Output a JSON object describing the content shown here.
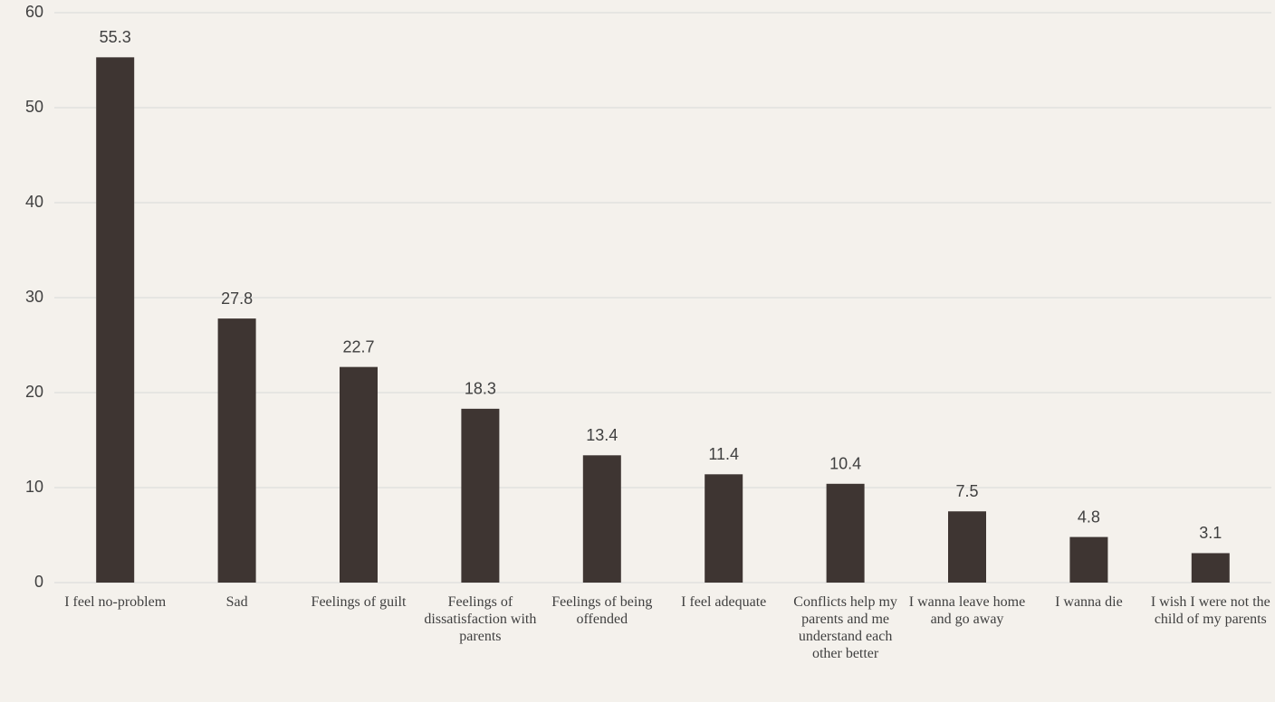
{
  "chart_data": {
    "type": "bar",
    "categories": [
      "I feel no-problem",
      "Sad",
      "Feelings of guilt",
      "Feelings of dissatisfaction with parents",
      "Feelings of being offended",
      "I feel adequate",
      "Conflicts help my parents and me understand each other better",
      "I wanna leave home and go away",
      "I wanna die",
      "I wish I were not the child of my parents"
    ],
    "values": [
      55.3,
      27.8,
      22.7,
      18.3,
      13.4,
      11.4,
      10.4,
      7.5,
      4.8,
      3.1
    ],
    "color": "#3e3532",
    "ylim": [
      0,
      60
    ],
    "yticks": [
      0,
      10,
      20,
      30,
      40,
      50,
      60
    ],
    "grid": true
  }
}
